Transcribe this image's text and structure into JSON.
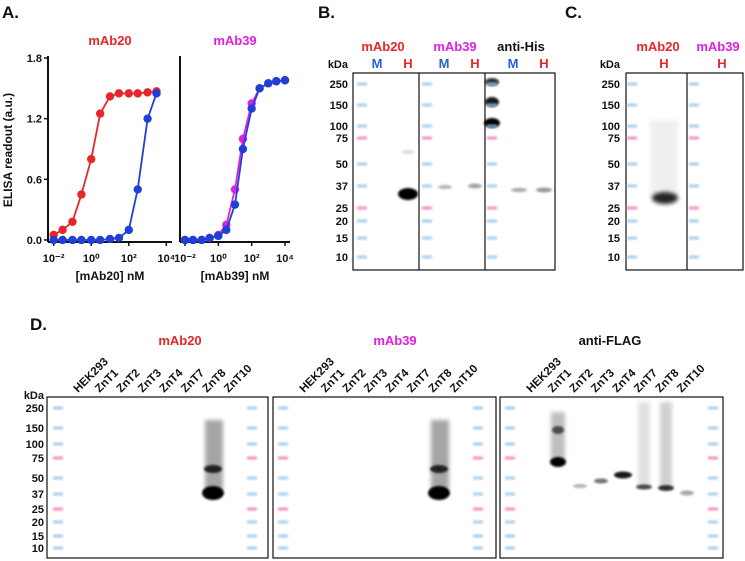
{
  "panel_labels": [
    "A.",
    "B.",
    "C.",
    "D."
  ],
  "chart_data": [
    {
      "type": "line",
      "title": "mAb20",
      "title_color": "#e8262a",
      "x_label": "[mAb20] nM",
      "y_label": "ELISA readout (a.u.)",
      "xscale": "log",
      "xlim": [
        0.005,
        20000
      ],
      "xticks": [
        {
          "value": 0.01,
          "label": "10⁻²"
        },
        {
          "value": 1,
          "label": "10⁰"
        },
        {
          "value": 100,
          "label": "10²"
        },
        {
          "value": 10000,
          "label": "10⁴"
        }
      ],
      "ylim": [
        -0.02,
        1.8
      ],
      "yticks": [
        {
          "value": 0,
          "label": "0.0"
        },
        0.6,
        1.2,
        1.8
      ],
      "x": [
        0.01,
        0.03,
        0.1,
        0.3,
        1,
        3,
        10,
        30,
        100,
        300,
        1000,
        3000
      ],
      "series": [
        {
          "color": "#e8262a",
          "values": [
            0.05,
            0.1,
            0.18,
            0.45,
            0.8,
            1.25,
            1.42,
            1.45,
            1.45,
            1.45,
            1.46,
            1.47
          ]
        },
        {
          "color": "#1f3fd6",
          "values": [
            0,
            0,
            0,
            0,
            0,
            0,
            0.01,
            0.02,
            0.1,
            0.5,
            1.2,
            1.45
          ]
        }
      ]
    },
    {
      "type": "line",
      "title": "mAb39",
      "title_color": "#e020e0",
      "x_label": "[mAb39] nM",
      "xscale": "log",
      "xlim": [
        0.005,
        20000
      ],
      "xticks": [
        {
          "value": 0.01,
          "label": "10⁻²"
        },
        {
          "value": 1,
          "label": "10⁰"
        },
        {
          "value": 100,
          "label": "10²"
        },
        {
          "value": 10000,
          "label": "10⁴"
        }
      ],
      "ylim": [
        -0.02,
        1.8
      ],
      "x": [
        0.01,
        0.03,
        0.1,
        0.3,
        1,
        3,
        10,
        30,
        100,
        300,
        1000,
        3000,
        10000
      ],
      "series": [
        {
          "color": "#e020e0",
          "values": [
            0,
            0,
            0,
            0.02,
            0.05,
            0.15,
            0.5,
            1.0,
            1.35,
            1.5,
            1.55,
            1.57,
            1.58
          ]
        },
        {
          "color": "#1f3fd6",
          "values": [
            0,
            0,
            0,
            0.02,
            0.04,
            0.1,
            0.35,
            0.9,
            1.3,
            1.5,
            1.55,
            1.57,
            1.58
          ]
        }
      ]
    }
  ],
  "blot_b": {
    "kda": "kDa",
    "markers": [
      "250",
      "150",
      "100",
      "75",
      "50",
      "37",
      "25",
      "20",
      "15",
      "10"
    ],
    "groups": [
      {
        "title": "mAb20",
        "color": "#e8262a",
        "lanes": [
          {
            "label": "M",
            "color": "#2a5fd6"
          },
          {
            "label": "H",
            "color": "#e8262a"
          }
        ]
      },
      {
        "title": "mAb39",
        "color": "#e020e0",
        "lanes": [
          {
            "label": "M",
            "color": "#2a5fd6"
          },
          {
            "label": "H",
            "color": "#e8262a"
          }
        ]
      },
      {
        "title": "anti-His",
        "color": "#111111",
        "lanes": [
          {
            "label": "M",
            "color": "#2a5fd6"
          },
          {
            "label": "H",
            "color": "#e8262a"
          }
        ]
      }
    ]
  },
  "blot_c": {
    "kda": "kDa",
    "markers": [
      "250",
      "150",
      "100",
      "75",
      "50",
      "37",
      "25",
      "20",
      "15",
      "10"
    ],
    "groups": [
      {
        "title": "mAb20",
        "color": "#e8262a",
        "lanes": [
          {
            "label": "H",
            "color": "#e8262a"
          }
        ]
      },
      {
        "title": "mAb39",
        "color": "#e020e0",
        "lanes": [
          {
            "label": "H",
            "color": "#e8262a"
          }
        ]
      }
    ]
  },
  "blot_d": {
    "kda": "kDa",
    "markers": [
      "250",
      "150",
      "100",
      "75",
      "50",
      "37",
      "25",
      "20",
      "15",
      "10"
    ],
    "groups": [
      {
        "title": "mAb20",
        "color": "#e8262a",
        "lanes": [
          "HEK293",
          "ZnT1",
          "ZnT2",
          "ZnT3",
          "ZnT4",
          "ZnT7",
          "ZnT8",
          "ZnT10"
        ]
      },
      {
        "title": "mAb39",
        "color": "#e020e0",
        "lanes": [
          "HEK293",
          "ZnT1",
          "ZnT2",
          "ZnT3",
          "ZnT4",
          "ZnT7",
          "ZnT8",
          "ZnT10"
        ]
      },
      {
        "title": "anti-FLAG",
        "color": "#111111",
        "lanes": [
          "HEK293",
          "ZnT1",
          "ZnT2",
          "ZnT3",
          "ZnT4",
          "ZnT7",
          "ZnT8",
          "ZnT10"
        ]
      }
    ]
  }
}
